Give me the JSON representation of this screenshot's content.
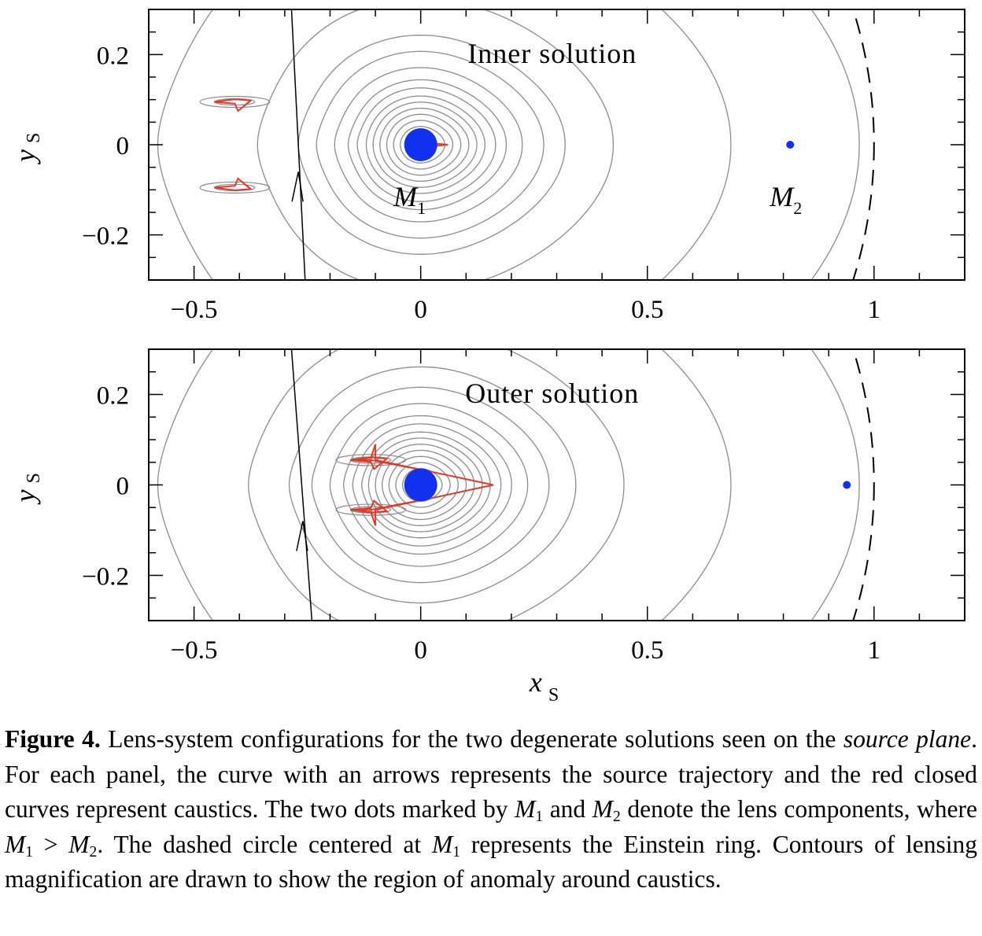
{
  "chart_data": [
    {
      "type": "contour",
      "title": "Inner solution",
      "xlabel": "",
      "ylabel": "y",
      "ylabel_sub": "S",
      "xlim": [
        -0.6,
        1.2
      ],
      "ylim": [
        -0.3,
        0.3
      ],
      "xticks": [
        -0.5,
        0,
        0.5,
        1
      ],
      "xtick_labels": [
        "−0.5",
        "0",
        "0.5",
        "1"
      ],
      "yticks": [
        -0.2,
        0,
        0.2
      ],
      "ytick_labels": [
        "−0.2",
        "0",
        "0.2"
      ],
      "lenses": [
        {
          "label": "M",
          "sub": "1",
          "x": 0.0,
          "y": 0.0,
          "label_x": -0.06,
          "label_y": -0.115
        },
        {
          "label": "M",
          "sub": "2",
          "x": 0.815,
          "y": 0.0,
          "label_x": 0.77,
          "label_y": -0.115
        }
      ],
      "einstein_ring_radius": 1.0,
      "trajectory": {
        "start": [
          -0.285,
          0.3
        ],
        "end": [
          -0.255,
          -0.3
        ],
        "arrow_at": [
          -0.27,
          -0.06
        ]
      },
      "caustic_centers": [
        [
          0.0,
          0.0
        ],
        [
          -0.41,
          0.095
        ],
        [
          -0.41,
          -0.095
        ]
      ],
      "colors": {
        "lens": "#1230f0",
        "caustic": "#e23a2a",
        "contour": "#8c8c8c",
        "trajectory": "#000000"
      }
    },
    {
      "type": "contour",
      "title": "Outer solution",
      "xlabel": "x",
      "xlabel_sub": "S",
      "ylabel": "y",
      "ylabel_sub": "S",
      "xlim": [
        -0.6,
        1.2
      ],
      "ylim": [
        -0.3,
        0.3
      ],
      "xticks": [
        -0.5,
        0,
        0.5,
        1
      ],
      "xtick_labels": [
        "−0.5",
        "0",
        "0.5",
        "1"
      ],
      "yticks": [
        -0.2,
        0,
        0.2
      ],
      "ytick_labels": [
        "−0.2",
        "0",
        "0.2"
      ],
      "lenses": [
        {
          "x": 0.0,
          "y": 0.0
        },
        {
          "x": 0.94,
          "y": 0.0
        }
      ],
      "einstein_ring_radius": 1.0,
      "trajectory": {
        "start": [
          -0.285,
          0.3
        ],
        "end": [
          -0.24,
          -0.3
        ],
        "arrow_at": [
          -0.26,
          -0.08
        ]
      },
      "caustic_centers": [
        [
          0.0,
          0.0
        ],
        [
          -0.11,
          0.055
        ],
        [
          -0.11,
          -0.055
        ]
      ],
      "colors": {
        "lens": "#1230f0",
        "caustic": "#e23a2a",
        "contour": "#8c8c8c",
        "trajectory": "#000000"
      }
    }
  ],
  "caption": {
    "label": "Figure 4.",
    "t1": " Lens-system configurations for the two degenerate solutions seen on the ",
    "t2": "source plane",
    "t3": ". For each panel, the curve with an arrows represents the source trajectory and the red closed curves represent caustics. The two dots marked by ",
    "m": "M",
    "one": "1",
    "two": "2",
    "t4": " and ",
    "t5": " denote the lens components, where ",
    "gt": " > ",
    "t6": ". The dashed circle centered at ",
    "t7": " represents the Einstein ring. Contours of lensing magnification are drawn to show the region of anomaly around caustics."
  }
}
